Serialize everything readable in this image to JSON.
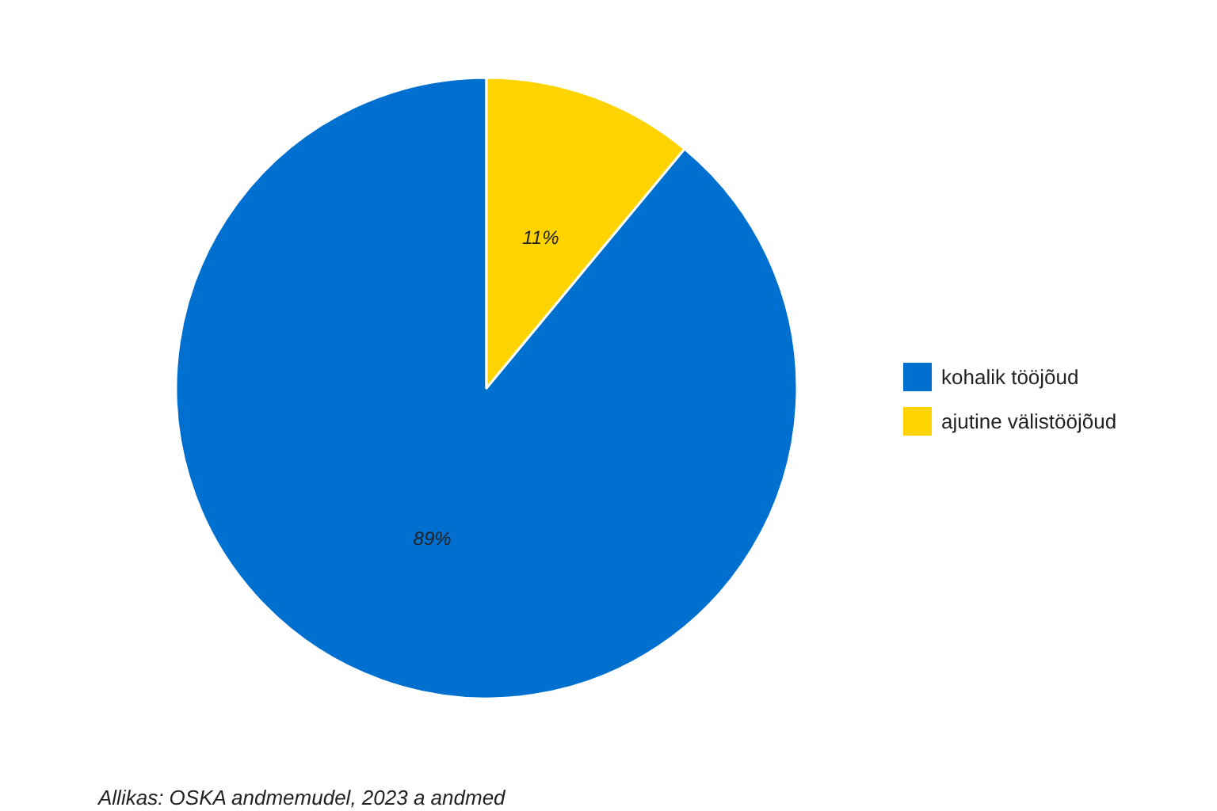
{
  "chart_data": {
    "type": "pie",
    "categories": [
      "kohalik tööjõud",
      "ajutine välistööjõud"
    ],
    "values": [
      89,
      11
    ],
    "colors": [
      "#0070d0",
      "#ffd300"
    ],
    "value_labels": [
      "89%",
      "11%"
    ],
    "legend": "right",
    "annotations": [
      "Allikas: OSKA andmemudel, 2023 a andmed"
    ]
  }
}
